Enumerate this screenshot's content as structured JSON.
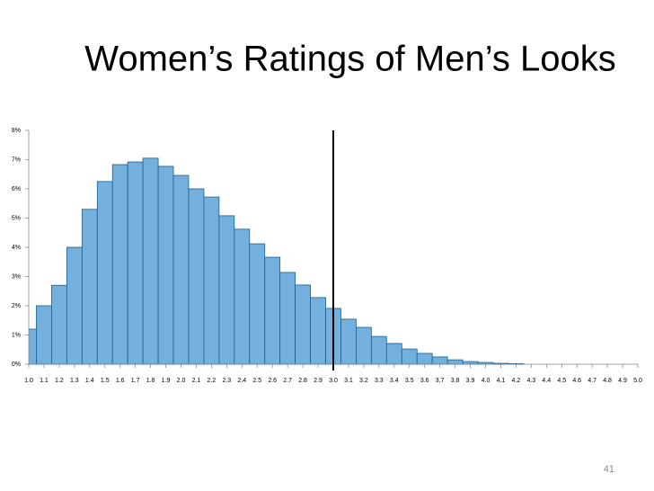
{
  "title": "Women’s Ratings of Men’s Looks",
  "page_number": "41",
  "chart_data": {
    "type": "bar",
    "categories": [
      "1.0",
      "1.1",
      "1.2",
      "1.3",
      "1.4",
      "1.5",
      "1.6",
      "1.7",
      "1.8",
      "1.9",
      "2.0",
      "2.1",
      "2.2",
      "2.3",
      "2.4",
      "2.5",
      "2.6",
      "2.7",
      "2.8",
      "2.9",
      "3.0",
      "3.1",
      "3.2",
      "3.3",
      "3.4",
      "3.5",
      "3.6",
      "3.7",
      "3.8",
      "3.9",
      "4.0",
      "4.1",
      "4.2",
      "4.3",
      "4.4",
      "4.5",
      "4.6",
      "4.7",
      "4.8",
      "4.9",
      "5.0"
    ],
    "values": [
      1.2,
      2.0,
      2.7,
      4.0,
      5.3,
      6.25,
      6.83,
      6.92,
      7.05,
      6.77,
      6.46,
      6.0,
      5.72,
      5.08,
      4.62,
      4.12,
      3.66,
      3.14,
      2.71,
      2.28,
      1.91,
      1.54,
      1.26,
      0.95,
      0.71,
      0.52,
      0.37,
      0.25,
      0.15,
      0.09,
      0.06,
      0.03,
      0.02,
      0,
      0,
      0,
      0,
      0,
      0,
      0,
      0
    ],
    "color": "#73b0de",
    "reference_line": "3.0",
    "ylim": [
      0,
      8
    ],
    "yticks": [
      {
        "value": 0,
        "label": "0%"
      },
      {
        "value": 1,
        "label": "1%"
      },
      {
        "value": 2,
        "label": "2%"
      },
      {
        "value": 3,
        "label": "3%"
      },
      {
        "value": 4,
        "label": "4%"
      },
      {
        "value": 5,
        "label": "5%"
      },
      {
        "value": 6,
        "label": "6%"
      },
      {
        "value": 7,
        "label": "7%"
      },
      {
        "value": 8,
        "label": "8%"
      }
    ]
  }
}
